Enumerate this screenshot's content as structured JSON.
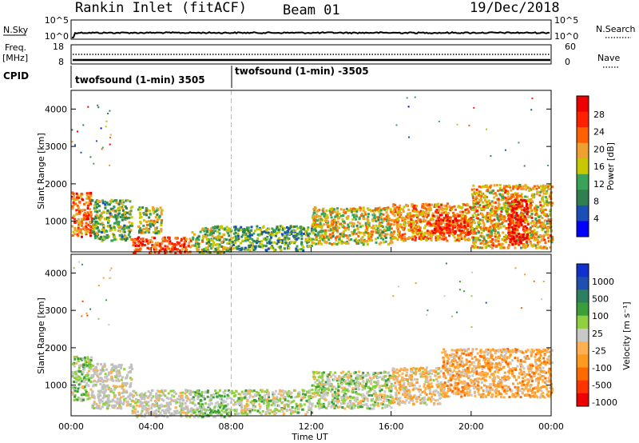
{
  "header": {
    "title": "Rankin Inlet (fitACF)",
    "beam": "Beam 01",
    "date": "19/Dec/2018"
  },
  "noise_panel": {
    "left_label": "N.Sky",
    "right_label": "N.Search",
    "left_ticks": [
      "10^5",
      "10^0"
    ],
    "right_ticks": [
      "10^5",
      "10^0"
    ]
  },
  "freq_panel": {
    "left_label_1": "Freq.",
    "left_label_2": "[MHz]",
    "right_label": "Nave",
    "left_ticks": [
      "18",
      "8"
    ],
    "right_ticks": [
      "60",
      "0"
    ]
  },
  "cpid": {
    "label": "CPID",
    "segments": [
      {
        "start_hour": 0.0,
        "text": "twofsound (1-min) 3505"
      },
      {
        "start_hour": 8.0,
        "text": "twofsound (1-min) -3505"
      }
    ]
  },
  "colors": {
    "power_scale": [
      "#0000ff",
      "#1b4fb8",
      "#2f7f4f",
      "#3aa35a",
      "#c8c800",
      "#f0a030",
      "#ff6000",
      "#ff2000",
      "#ee0000"
    ],
    "velocity_scale": [
      "#ee0000",
      "#ff3300",
      "#ff6a00",
      "#ff9a20",
      "#ffb050",
      "#c8c8c8",
      "#8fcf40",
      "#3a9f3a",
      "#2d7f5f",
      "#1f4fb0",
      "#1030d0"
    ],
    "ground_scatter": "#c0c0c0"
  },
  "power_colorbar": {
    "label": "Power [dB]",
    "ticks": [
      "28",
      "24",
      "20",
      "16",
      "12",
      "8",
      "4"
    ]
  },
  "velocity_colorbar": {
    "label": "Velocity [m s⁻¹]",
    "ticks": [
      "1000",
      "500",
      "100",
      "25",
      "-25",
      "-100",
      "-500",
      "-1000"
    ]
  },
  "x_axis": {
    "label": "Time UT",
    "ticks": [
      "00:00",
      "04:00",
      "08:00",
      "12:00",
      "16:00",
      "20:00",
      "00:00"
    ]
  },
  "chart_data": [
    {
      "type": "heatmap",
      "title": "",
      "xlabel": "",
      "ylabel": "Slant Range [km]",
      "xlim": [
        0,
        24
      ],
      "ylim": [
        180,
        4500
      ],
      "yticks": [
        1000,
        2000,
        3000,
        4000
      ],
      "colorbar": {
        "label": "Power [dB]",
        "range": [
          0,
          30
        ],
        "ticks": [
          4,
          8,
          12,
          16,
          20,
          24,
          28
        ]
      },
      "regions": [
        {
          "t0": 0.0,
          "t1": 1.0,
          "r0": 600,
          "r1": 1800,
          "value": 22
        },
        {
          "t0": 1.0,
          "t1": 3.0,
          "r0": 500,
          "r1": 1600,
          "value": 12
        },
        {
          "t0": 3.0,
          "t1": 6.0,
          "r0": 180,
          "r1": 600,
          "value": 24
        },
        {
          "t0": 3.3,
          "t1": 4.5,
          "r0": 700,
          "r1": 1400,
          "value": 14
        },
        {
          "t0": 6.0,
          "t1": 8.0,
          "r0": 180,
          "r1": 900,
          "value": 14
        },
        {
          "t0": 8.0,
          "t1": 12.0,
          "r0": 250,
          "r1": 900,
          "value": 10
        },
        {
          "t0": 12.0,
          "t1": 16.0,
          "r0": 400,
          "r1": 1400,
          "value": 16
        },
        {
          "t0": 16.0,
          "t1": 20.0,
          "r0": 500,
          "r1": 1500,
          "value": 20
        },
        {
          "t0": 18.0,
          "t1": 20.0,
          "r0": 700,
          "r1": 1200,
          "value": 26
        },
        {
          "t0": 20.0,
          "t1": 24.0,
          "r0": 300,
          "r1": 2000,
          "value": 18
        },
        {
          "t0": 21.8,
          "t1": 22.8,
          "r0": 400,
          "r1": 1600,
          "value": 28
        }
      ]
    },
    {
      "type": "heatmap",
      "title": "",
      "xlabel": "Time UT",
      "ylabel": "Slant Range [km]",
      "xlim": [
        0,
        24
      ],
      "ylim": [
        180,
        4500
      ],
      "yticks": [
        1000,
        2000,
        3000,
        4000
      ],
      "colorbar": {
        "label": "Velocity [m s⁻¹]",
        "range": [
          -1000,
          1000
        ],
        "ticks": [
          1000,
          500,
          100,
          25,
          -25,
          -100,
          -500,
          -1000
        ]
      },
      "regions": [
        {
          "t0": 0.0,
          "t1": 1.0,
          "r0": 600,
          "r1": 1800,
          "value": 150
        },
        {
          "t0": 1.0,
          "t1": 3.0,
          "r0": 400,
          "r1": 1600,
          "value": 0,
          "ground_scatter": true
        },
        {
          "t0": 3.0,
          "t1": 6.0,
          "r0": 180,
          "r1": 900,
          "value": 0,
          "ground_scatter": true
        },
        {
          "t0": 6.0,
          "t1": 8.0,
          "r0": 180,
          "r1": 900,
          "value": 200
        },
        {
          "t0": 8.0,
          "t1": 12.0,
          "r0": 250,
          "r1": 900,
          "value": 80
        },
        {
          "t0": 12.0,
          "t1": 16.0,
          "r0": 400,
          "r1": 1400,
          "value": 120
        },
        {
          "t0": 16.0,
          "t1": 18.5,
          "r0": 500,
          "r1": 1500,
          "value": -150
        },
        {
          "t0": 18.5,
          "t1": 24.0,
          "r0": 700,
          "r1": 2000,
          "value": -300
        }
      ]
    }
  ]
}
